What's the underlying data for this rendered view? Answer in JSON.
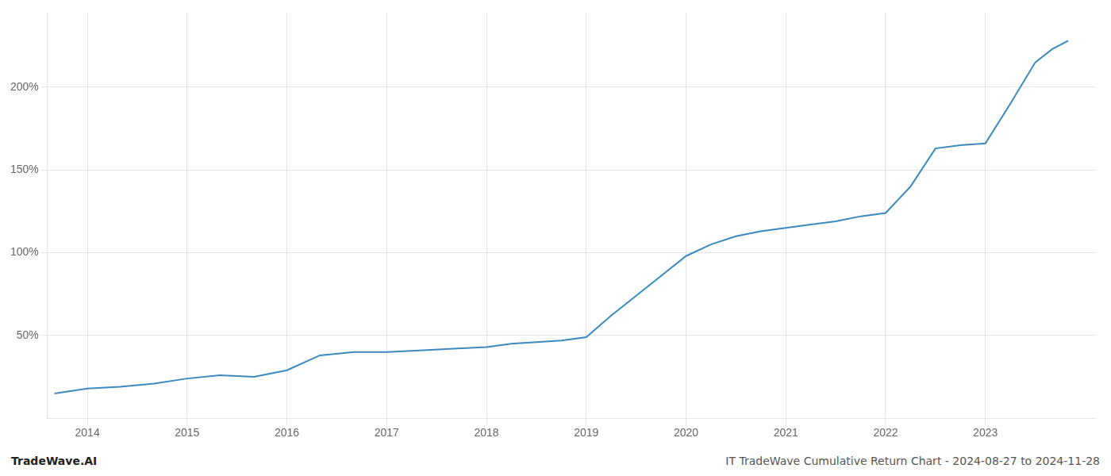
{
  "chart_data": {
    "type": "line",
    "x": [
      2013.67,
      2014.0,
      2014.33,
      2014.67,
      2015.0,
      2015.33,
      2015.67,
      2016.0,
      2016.33,
      2016.67,
      2017.0,
      2017.33,
      2017.67,
      2018.0,
      2018.25,
      2018.5,
      2018.75,
      2019.0,
      2019.25,
      2019.5,
      2019.75,
      2020.0,
      2020.25,
      2020.5,
      2020.75,
      2021.0,
      2021.25,
      2021.5,
      2021.75,
      2022.0,
      2022.25,
      2022.5,
      2022.75,
      2023.0,
      2023.25,
      2023.5,
      2023.67,
      2023.83
    ],
    "values": [
      15,
      18,
      19,
      21,
      24,
      26,
      25,
      29,
      38,
      40,
      40,
      41,
      42,
      43,
      45,
      46,
      47,
      49,
      62,
      74,
      86,
      98,
      105,
      110,
      113,
      115,
      117,
      119,
      122,
      124,
      140,
      163,
      165,
      166,
      190,
      215,
      223,
      228
    ],
    "color": "#3a8abf",
    "xlim": [
      2013.6,
      2024.1
    ],
    "xticks": [
      2014,
      2015,
      2016,
      2017,
      2018,
      2019,
      2020,
      2021,
      2022,
      2023
    ],
    "ylim": [
      0,
      245
    ],
    "yticks": [
      {
        "value": 50,
        "label": "50%"
      },
      {
        "value": 100,
        "label": "100%"
      },
      {
        "value": 150,
        "label": "150%"
      },
      {
        "value": 200,
        "label": "200%"
      }
    ],
    "grid": true,
    "annotations": [
      "TradeWave.AI",
      "IT TradeWave Cumulative Return Chart - 2024-08-27 to 2024-11-28"
    ]
  }
}
